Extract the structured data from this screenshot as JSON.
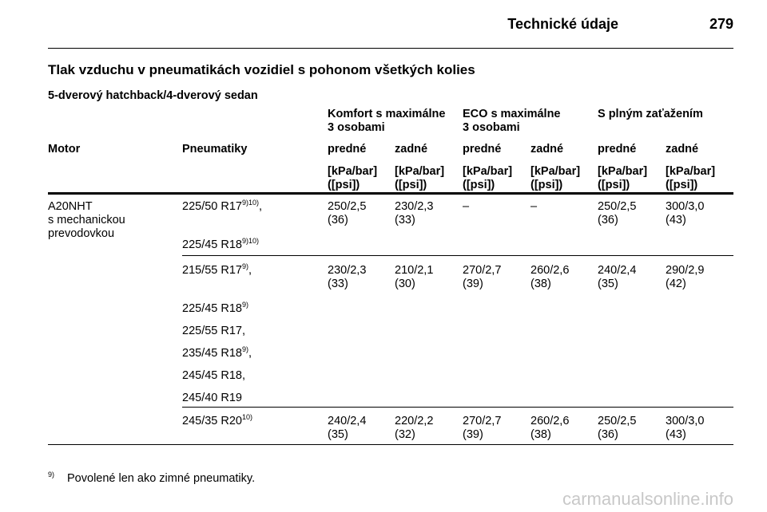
{
  "header": {
    "section": "Technické údaje",
    "page": "279"
  },
  "title": "Tlak vzduchu v pneumatikách vozidiel s pohonom všetkých kolies",
  "subtitle": "5-dverový hatchback/4-dverový sedan",
  "table": {
    "groups": [
      [
        "Komfort s maximálne",
        "3 osobami"
      ],
      [
        "ECO s maximálne",
        "3 osobami"
      ],
      [
        "S plným zaťažením"
      ]
    ],
    "columns": [
      "Motor",
      "Pneumatiky",
      "predné",
      "zadné",
      "predné",
      "zadné",
      "predné",
      "zadné"
    ],
    "units": [
      [
        "[kPa/bar]",
        "([psi])"
      ],
      [
        "[kPa/bar]",
        "([psi])"
      ],
      [
        "[kPa/bar]",
        "([psi])"
      ],
      [
        "[kPa/bar]",
        "([psi])"
      ],
      [
        "[kPa/bar]",
        "([psi])"
      ],
      [
        "[kPa/bar]",
        "([psi])"
      ]
    ],
    "rows": [
      {
        "engine": [
          "A20NHT",
          "s mechanickou",
          "prevodovkou"
        ],
        "tires": [
          {
            "text": "225/50 R17",
            "sup": "9)10)",
            "after": ","
          },
          {
            "text": "225/45 R18",
            "sup": "9)10)"
          }
        ],
        "values": [
          [
            "250/2,5",
            "(36)"
          ],
          [
            "230/2,3",
            "(33)"
          ],
          [
            "–"
          ],
          [
            "–"
          ],
          [
            "250/2,5",
            "(36)"
          ],
          [
            "300/3,0",
            "(43)"
          ]
        ]
      },
      {
        "tires": [
          {
            "text": "215/55 R17",
            "sup": "9)",
            "after": ","
          },
          {
            "text": "225/45 R18",
            "sup": "9)"
          },
          {
            "text": "225/55 R17",
            "after": ","
          },
          {
            "text": "235/45 R18",
            "sup": "9)",
            "after": ","
          },
          {
            "text": "245/45 R18",
            "after": ","
          },
          {
            "text": "245/40 R19"
          }
        ],
        "values": [
          [
            "230/2,3",
            "(33)"
          ],
          [
            "210/2,1",
            "(30)"
          ],
          [
            "270/2,7",
            "(39)"
          ],
          [
            "260/2,6",
            "(38)"
          ],
          [
            "240/2,4",
            "(35)"
          ],
          [
            "290/2,9",
            "(42)"
          ]
        ]
      },
      {
        "tires": [
          {
            "text": "245/35 R20",
            "sup": "10)"
          }
        ],
        "values": [
          [
            "240/2,4",
            "(35)"
          ],
          [
            "220/2,2",
            "(32)"
          ],
          [
            "270/2,7",
            "(39)"
          ],
          [
            "260/2,6",
            "(38)"
          ],
          [
            "250/2,5",
            "(36)"
          ],
          [
            "300/3,0",
            "(43)"
          ]
        ]
      }
    ]
  },
  "footnote": {
    "mark": "9)",
    "text": "Povolené len ako zimné pneumatiky."
  },
  "watermark": "carmanualsonline.info"
}
